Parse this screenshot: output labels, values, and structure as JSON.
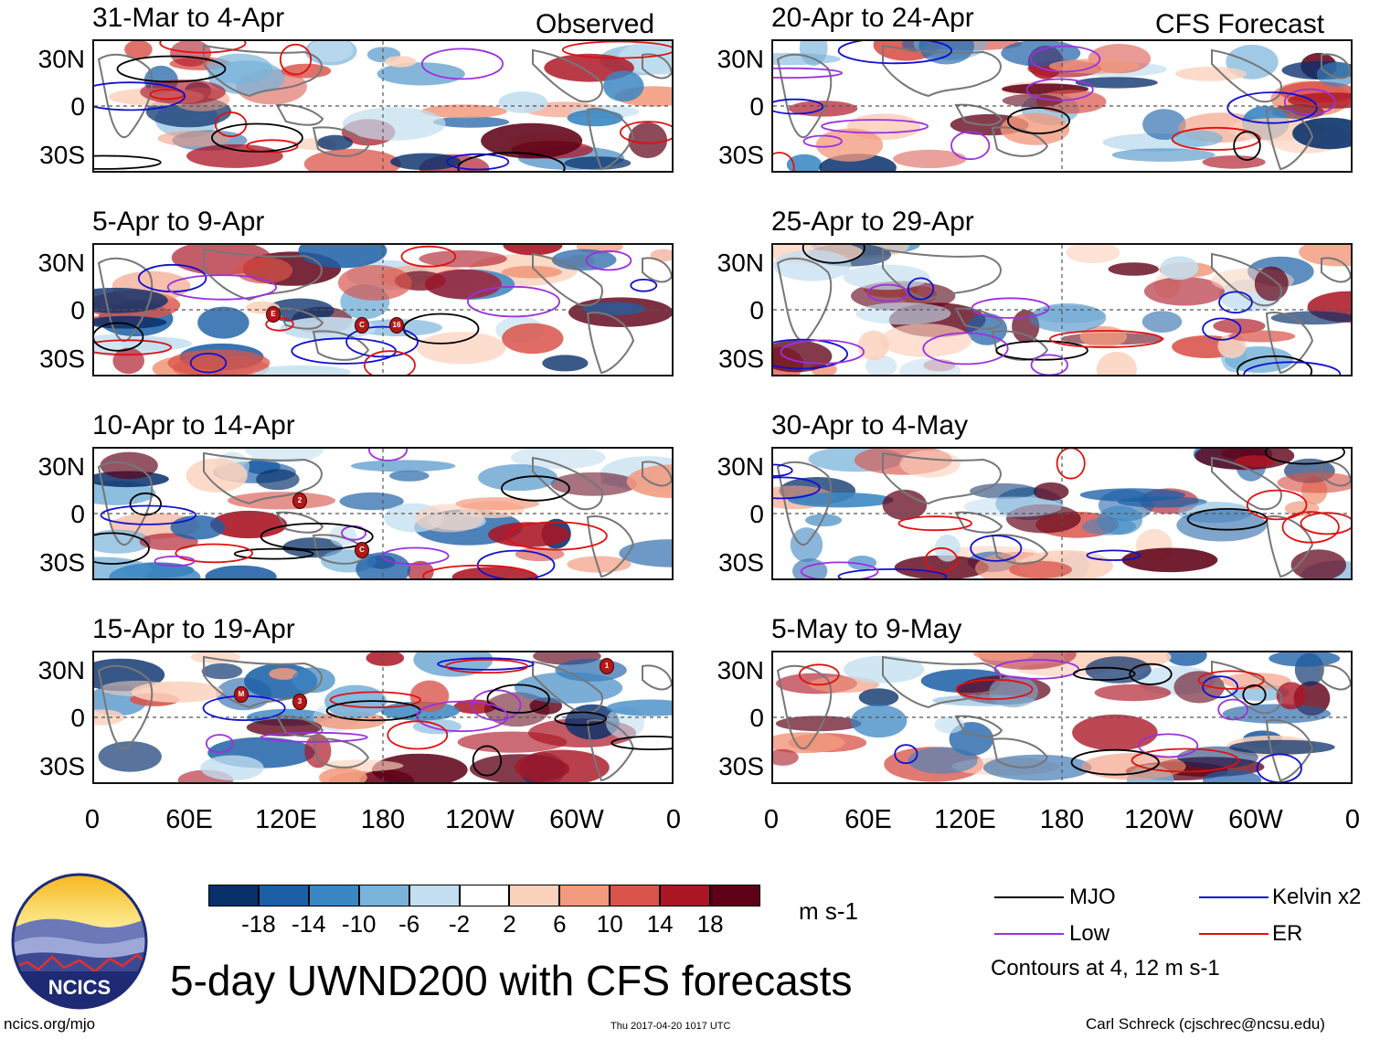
{
  "panels_observed": [
    {
      "title": "31-Mar to 4-Apr",
      "markers": []
    },
    {
      "title": "5-Apr to 9-Apr",
      "markers": [
        "E",
        "C",
        "16"
      ]
    },
    {
      "title": "10-Apr to 14-Apr",
      "markers": [
        "2",
        "C"
      ]
    },
    {
      "title": "15-Apr to 19-Apr",
      "markers": [
        "M",
        "3",
        "1"
      ]
    }
  ],
  "panels_forecast": [
    {
      "title": "20-Apr to 24-Apr"
    },
    {
      "title": "25-Apr to 29-Apr"
    },
    {
      "title": "30-Apr to 4-May"
    },
    {
      "title": "5-May to 9-May"
    }
  ],
  "column_labels": {
    "observed": "Observed",
    "forecast": "CFS Forecast"
  },
  "lat_labels": [
    "30N",
    "0",
    "30S"
  ],
  "lon_labels": [
    "0",
    "60E",
    "120E",
    "180",
    "120W",
    "60W",
    "0"
  ],
  "colorbar": {
    "ticks": [
      "-18",
      "-14",
      "-10",
      "-6",
      "-2",
      "2",
      "6",
      "10",
      "14",
      "18"
    ],
    "unit": "m s-1",
    "colors": [
      "#08306b",
      "#1c5fa6",
      "#3a86c2",
      "#79b3da",
      "#c2def0",
      "#ffffff",
      "#fcd1bc",
      "#f29a7d",
      "#d9544a",
      "#ab1525",
      "#5e0016"
    ]
  },
  "legend": {
    "mjo": "MJO",
    "kelvin": "Kelvin x2",
    "low": "Low",
    "er": "ER",
    "note": "Contours at 4, 12 m s-1",
    "colors": {
      "mjo": "#000000",
      "kelvin": "#1010d0",
      "low": "#9b30e0",
      "er": "#e01010"
    }
  },
  "main_title": "5-day UWND200 with CFS forecasts",
  "logo": {
    "text": "NCICS"
  },
  "footer": {
    "url": "ncics.org/mjo",
    "timestamp": "Thu 2017-04-20 1017 UTC",
    "author": "Carl Schreck (cjschrec@ncsu.edu)"
  }
}
